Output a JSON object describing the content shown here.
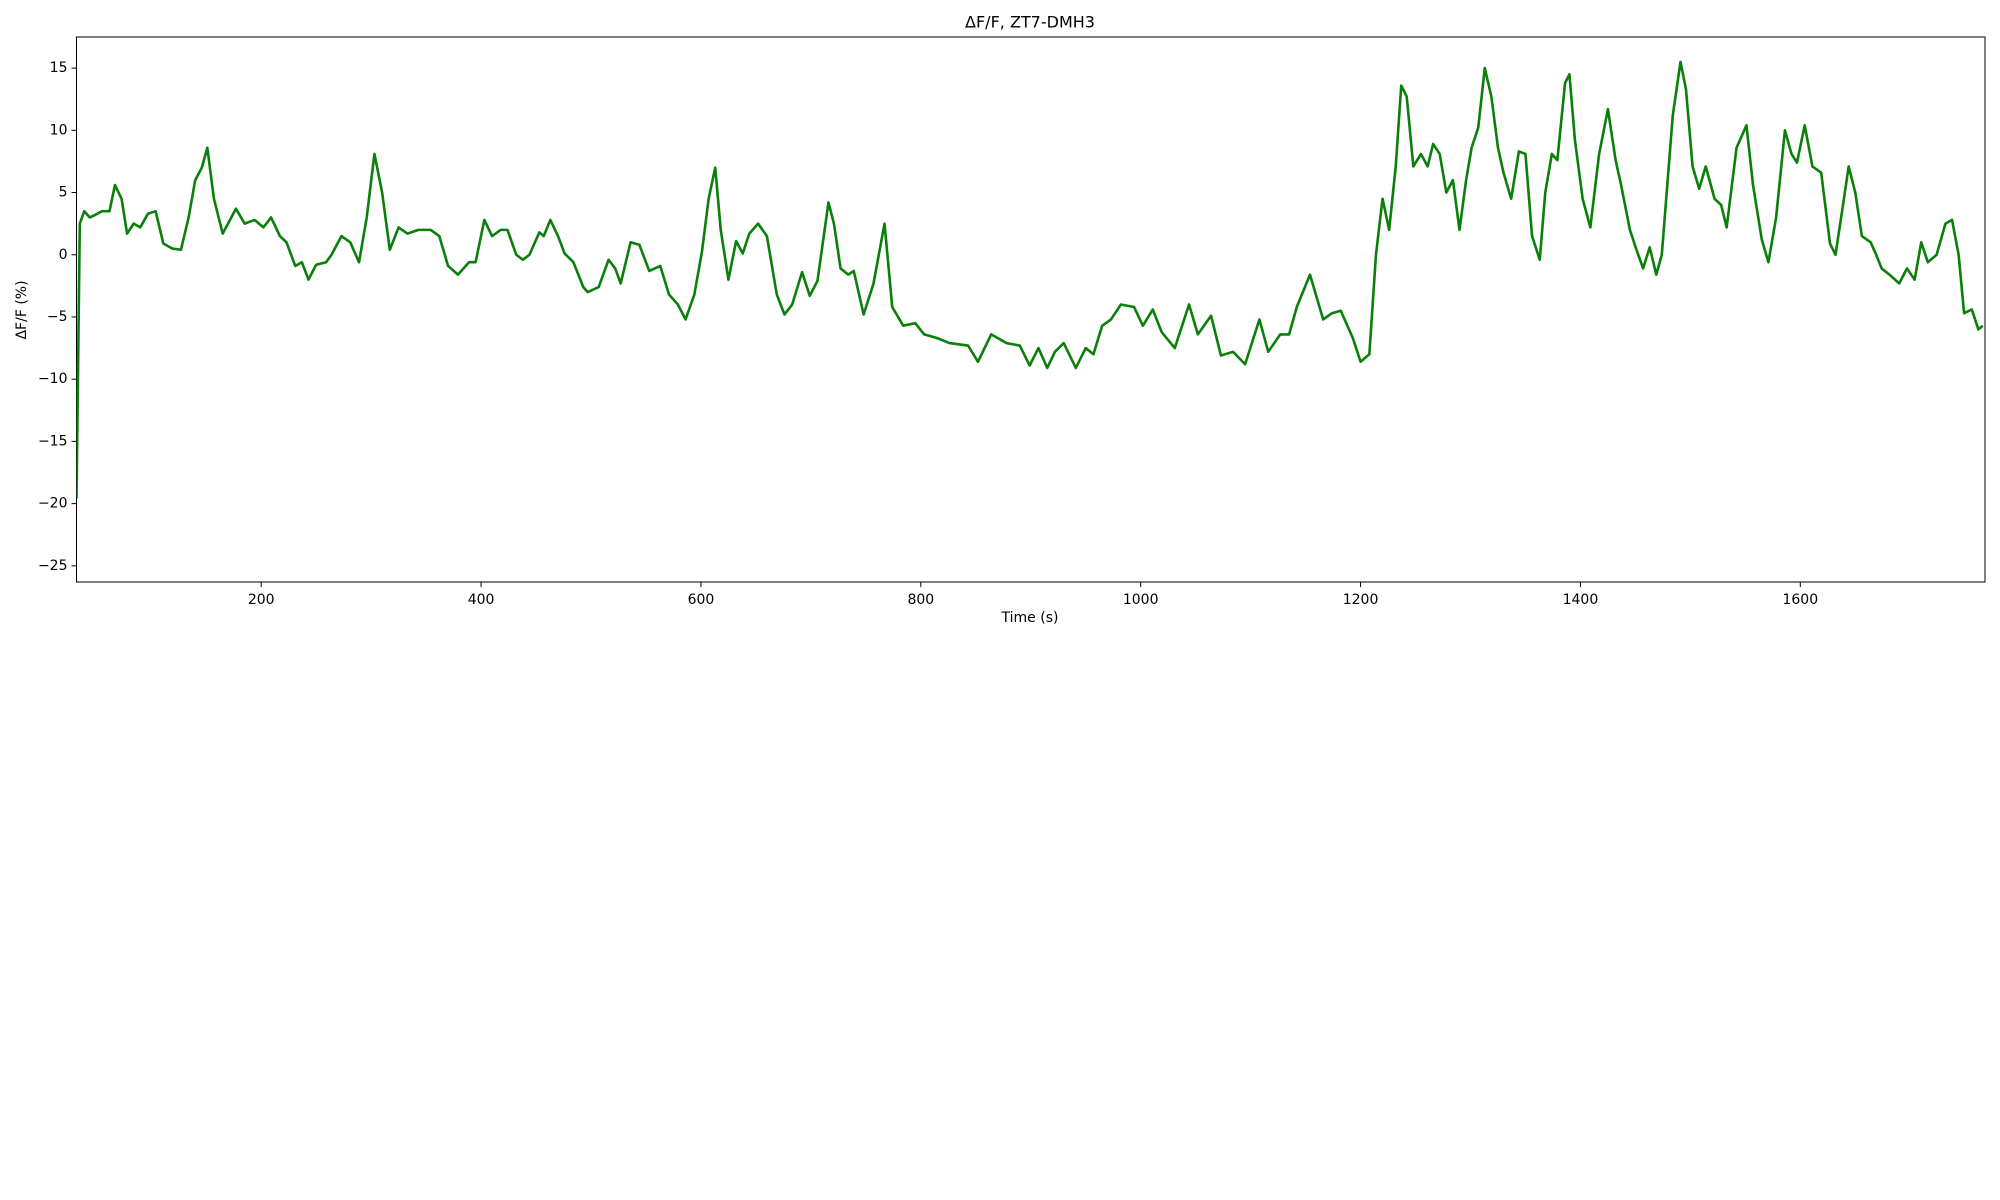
{
  "chart_data": {
    "type": "line",
    "title": "ΔF/F, ZT7-DMH3",
    "x_label": "Time (s)",
    "y_label": "ΔF/F (%)",
    "xlim": [
      32,
      1768
    ],
    "ylim": [
      -26.3,
      17.5
    ],
    "xticks": [
      200,
      400,
      600,
      800,
      1000,
      1200,
      1400,
      1600
    ],
    "yticks": [
      {
        "value": -25,
        "label": "−25"
      },
      {
        "value": -20,
        "label": "−20"
      },
      {
        "value": -15,
        "label": "−15"
      },
      {
        "value": -10,
        "label": "−10"
      },
      {
        "value": -5,
        "label": "−5"
      },
      0,
      5,
      10,
      15
    ],
    "grid": false,
    "x": [
      32,
      35,
      39,
      44,
      49,
      55,
      62,
      67,
      73,
      78,
      84,
      90,
      97,
      104,
      111,
      119,
      127,
      134,
      140,
      146,
      151,
      157,
      165,
      177,
      185,
      194,
      202,
      209,
      217,
      223,
      231,
      237,
      243,
      250,
      259,
      264,
      273,
      281,
      289,
      296,
      303,
      310,
      317,
      325,
      333,
      343,
      354,
      362,
      370,
      379,
      389,
      395,
      403,
      410,
      418,
      424,
      432,
      438,
      444,
      453,
      457,
      463,
      470,
      476,
      484,
      493,
      497,
      507,
      516,
      522,
      527,
      536,
      544,
      553,
      563,
      571,
      579,
      586,
      594,
      601,
      607,
      613,
      618,
      625,
      632,
      638,
      644,
      652,
      660,
      669,
      676,
      683,
      692,
      699,
      706,
      716,
      721,
      727,
      734,
      739,
      748,
      757,
      767,
      774,
      784,
      795,
      803,
      815,
      826,
      843,
      852,
      864,
      878,
      890,
      899,
      907,
      915,
      922,
      930,
      941,
      950,
      957,
      965,
      973,
      982,
      994,
      1002,
      1011,
      1019,
      1031,
      1044,
      1052,
      1064,
      1073,
      1084,
      1095,
      1108,
      1116,
      1127,
      1135,
      1142,
      1154,
      1166,
      1174,
      1182,
      1193,
      1200,
      1208,
      1214,
      1220,
      1226,
      1232,
      1237,
      1242,
      1248,
      1255,
      1261,
      1266,
      1272,
      1278,
      1284,
      1290,
      1296,
      1301,
      1307,
      1313,
      1319,
      1325,
      1330,
      1337,
      1344,
      1350,
      1356,
      1363,
      1368,
      1374,
      1379,
      1386,
      1390,
      1395,
      1402,
      1409,
      1417,
      1425,
      1432,
      1437,
      1445,
      1451,
      1457,
      1463,
      1469,
      1474,
      1484,
      1491,
      1496,
      1502,
      1508,
      1514,
      1522,
      1528,
      1533,
      1542,
      1551,
      1557,
      1565,
      1571,
      1578,
      1586,
      1592,
      1597,
      1604,
      1611,
      1619,
      1627,
      1632,
      1638,
      1644,
      1650,
      1656,
      1664,
      1669,
      1674,
      1681,
      1690,
      1697,
      1704,
      1710,
      1716,
      1724,
      1732,
      1738,
      1744,
      1749,
      1756,
      1762,
      1766
    ],
    "series": [
      {
        "name": "ΔF/F",
        "color": "#0a7f0a",
        "values": [
          -19.6,
          2.5,
          3.5,
          3.0,
          3.2,
          3.5,
          3.5,
          5.6,
          4.5,
          1.7,
          2.5,
          2.2,
          3.3,
          3.5,
          0.9,
          0.5,
          0.4,
          3,
          6,
          7,
          8.6,
          4.5,
          1.7,
          3.7,
          2.5,
          2.8,
          2.2,
          3,
          1.5,
          1,
          -0.9,
          -0.6,
          -2,
          -0.8,
          -0.6,
          0,
          1.5,
          1,
          -0.6,
          3,
          8.1,
          5,
          0.4,
          2.2,
          1.7,
          2,
          2,
          1.5,
          -0.9,
          -1.6,
          -0.6,
          -0.6,
          2.8,
          1.5,
          2,
          2,
          0,
          -0.4,
          0,
          1.8,
          1.5,
          2.8,
          1.5,
          0.1,
          -0.6,
          -2.6,
          -3,
          -2.6,
          -0.4,
          -1.1,
          -2.3,
          1,
          0.8,
          -1.3,
          -0.9,
          -3.2,
          -4,
          -5.2,
          -3.2,
          0.3,
          4.5,
          7,
          2,
          -2,
          1.1,
          0.1,
          1.7,
          2.5,
          1.5,
          -3.2,
          -4.8,
          -4,
          -1.4,
          -3.3,
          -2.1,
          4.2,
          2.5,
          -1.1,
          -1.6,
          -1.3,
          -4.8,
          -2.3,
          2.5,
          -4.2,
          -5.7,
          -5.5,
          -6.4,
          -6.7,
          -7.1,
          -7.3,
          -8.6,
          -6.4,
          -7.1,
          -7.3,
          -8.9,
          -7.5,
          -9.1,
          -7.8,
          -7.1,
          -9.1,
          -7.5,
          -8,
          -5.7,
          -5.2,
          -4,
          -4.2,
          -5.7,
          -4.4,
          -6.2,
          -7.5,
          -4,
          -6.4,
          -4.9,
          -8.1,
          -7.8,
          -8.8,
          -5.2,
          -7.8,
          -6.4,
          -6.4,
          -4.2,
          -1.6,
          -5.2,
          -4.7,
          -4.5,
          -6.7,
          -8.6,
          -8,
          0,
          4.5,
          2,
          7.1,
          13.6,
          12.7,
          7.1,
          8.1,
          7.1,
          8.9,
          8.1,
          5,
          6,
          2,
          6,
          8.6,
          10.2,
          15,
          12.7,
          8.6,
          6.6,
          4.5,
          8.3,
          8.1,
          1.5,
          -0.4,
          5,
          8.1,
          7.6,
          13.8,
          14.5,
          9.2,
          4.5,
          2.2,
          8.1,
          11.7,
          7.6,
          5.6,
          2,
          0.4,
          -1.1,
          0.6,
          -1.6,
          0,
          11.2,
          15.5,
          13.3,
          7.1,
          5.3,
          7.1,
          4.5,
          4,
          2.2,
          8.6,
          10.4,
          5.6,
          1.2,
          -0.6,
          3,
          10,
          8.1,
          7.4,
          10.4,
          7.1,
          6.6,
          0.9,
          0,
          3.5,
          7.1,
          5,
          1.5,
          1,
          0,
          -1.1,
          -1.6,
          -2.3,
          -1.1,
          -2,
          1,
          -0.6,
          0,
          2.5,
          2.8,
          0,
          -4.7,
          -4.4,
          -6,
          -5.7
        ]
      }
    ]
  }
}
